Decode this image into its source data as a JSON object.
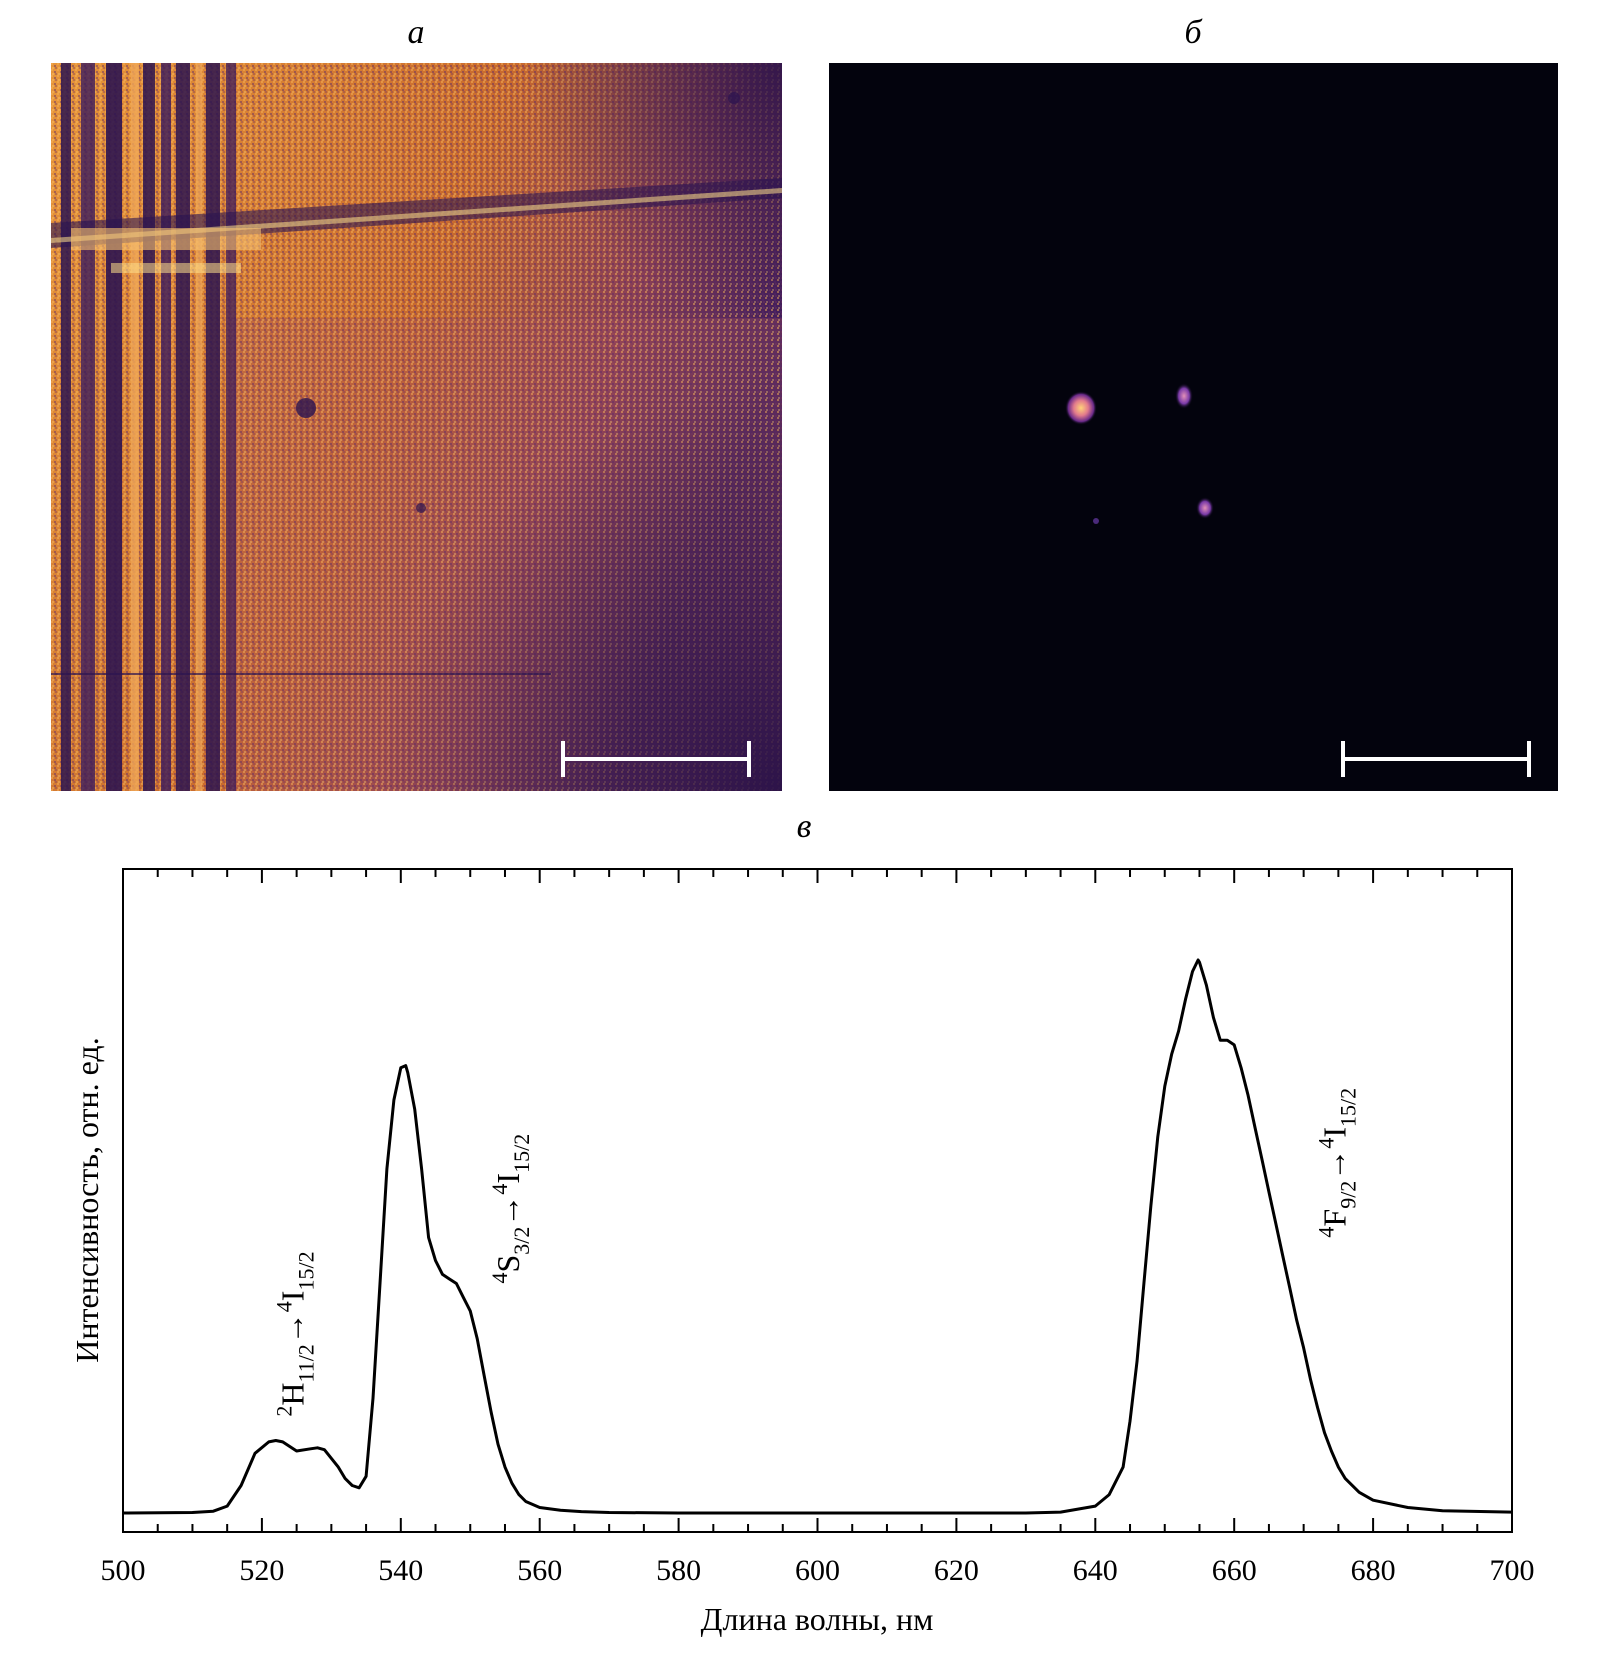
{
  "panels": {
    "a_label": "а",
    "b_label": "б",
    "c_label": "в"
  },
  "colors": {
    "map_bright": "#f7b25a",
    "map_mid": "#d9842f",
    "map_dark": "#3a1a5c",
    "map_black": "#03030d",
    "scale_bar": "#ffffff",
    "line": "#000000"
  },
  "chart_data": {
    "type": "line",
    "title": "",
    "xlabel": "Длина волны, нм",
    "ylabel": "Интенсивность, отн. ед.",
    "xlim": [
      500,
      700
    ],
    "ylim": [
      0,
      1.2
    ],
    "x_ticks": [
      500,
      520,
      540,
      560,
      580,
      600,
      620,
      640,
      660,
      680,
      700
    ],
    "y_tick_labels": false,
    "series": [
      {
        "x": [
          500,
          510,
          513,
          515,
          517,
          519,
          521,
          522,
          523,
          525,
          527,
          528,
          529,
          531,
          532,
          533,
          534,
          535,
          536,
          537,
          538,
          539,
          540,
          540.7,
          541,
          542,
          543,
          544,
          545,
          546,
          547,
          548,
          549,
          550,
          551,
          552,
          553,
          554,
          555,
          556,
          557,
          558,
          560,
          563,
          566,
          570,
          580,
          600,
          620,
          630,
          635,
          640,
          642,
          644,
          645,
          646,
          647,
          648,
          649,
          650,
          651,
          652,
          653,
          654,
          654.8,
          655,
          656,
          657,
          658,
          659,
          660,
          661,
          662,
          663,
          664,
          665,
          666,
          667,
          668,
          669,
          670,
          671,
          672,
          673,
          674,
          675,
          676,
          678,
          680,
          685,
          690,
          700
        ],
        "y": [
          0.0,
          0.001,
          0.004,
          0.015,
          0.06,
          0.13,
          0.155,
          0.158,
          0.155,
          0.135,
          0.14,
          0.142,
          0.138,
          0.1,
          0.075,
          0.06,
          0.055,
          0.08,
          0.25,
          0.5,
          0.75,
          0.9,
          0.97,
          0.975,
          0.96,
          0.88,
          0.75,
          0.6,
          0.55,
          0.52,
          0.51,
          0.5,
          0.47,
          0.44,
          0.38,
          0.3,
          0.22,
          0.15,
          0.1,
          0.065,
          0.04,
          0.025,
          0.012,
          0.006,
          0.003,
          0.001,
          0.0,
          0.0,
          0.0,
          0.0,
          0.002,
          0.015,
          0.04,
          0.1,
          0.2,
          0.33,
          0.5,
          0.67,
          0.82,
          0.93,
          1.0,
          1.05,
          1.12,
          1.18,
          1.205,
          1.2,
          1.15,
          1.08,
          1.03,
          1.03,
          1.02,
          0.97,
          0.91,
          0.84,
          0.77,
          0.7,
          0.63,
          0.56,
          0.49,
          0.42,
          0.36,
          0.29,
          0.23,
          0.175,
          0.135,
          0.1,
          0.075,
          0.045,
          0.028,
          0.012,
          0.005,
          0.002
        ]
      }
    ],
    "annotations": [
      {
        "x": 526,
        "y": 0.21,
        "base": "2",
        "sym": "H",
        "sub": "11/2",
        "arrow": "→",
        "tbase": "4",
        "tsym": "I",
        "tsub": "15/2"
      },
      {
        "x": 557,
        "y": 0.5,
        "base": "4",
        "sym": "S",
        "sub": "3/2",
        "arrow": "→",
        "tbase": "4",
        "tsym": "I",
        "tsub": "15/2"
      },
      {
        "x": 676,
        "y": 0.6,
        "base": "4",
        "sym": "F",
        "sub": "9/2",
        "arrow": "→",
        "tbase": "4",
        "tsym": "I",
        "tsub": "15/2"
      }
    ]
  }
}
